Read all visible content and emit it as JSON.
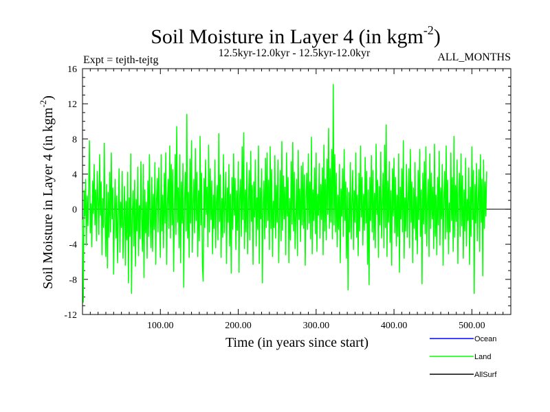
{
  "chart_data": {
    "type": "line",
    "title": "Soil Moisture in Layer 4 (in kgm",
    "title_sup": "-2",
    "title_end": ")",
    "subtitle_left": "Expt = tejth-tejtg",
    "subtitle_center": "12.5kyr-12.0kyr - 12.5kyr-12.0kyr",
    "subtitle_right": "ALL_MONTHS",
    "xlabel": "Time (in years since start)",
    "ylabel": "Soil Moisture in Layer 4 (in kgm",
    "ylabel_sup": "-2",
    "ylabel_end": ")",
    "xlim": [
      0,
      550
    ],
    "ylim": [
      -12,
      16
    ],
    "x_ticks": [
      100,
      200,
      300,
      400,
      500
    ],
    "x_tick_labels": [
      "100.00",
      "200.00",
      "300.00",
      "400.00",
      "500.00"
    ],
    "y_ticks": [
      -12,
      -8,
      -4,
      0,
      4,
      8,
      12,
      16
    ],
    "y_tick_labels": [
      "-12",
      "-8",
      "-4",
      "0",
      "4",
      "8",
      "12",
      "16"
    ],
    "zero_line": true,
    "legend": [
      {
        "name": "Ocean",
        "color": "#0000ff"
      },
      {
        "name": "Land",
        "color": "#00ff00"
      },
      {
        "name": "AllSurf",
        "color": "#000000"
      }
    ],
    "series": [
      {
        "name": "Land",
        "color": "#00ff00",
        "x_start": 0,
        "x_step": 1,
        "values": [
          -1.2,
          -10.6,
          2.1,
          -0.8,
          3.4,
          -4.1,
          1.5,
          -1.9,
          2.6,
          7.8,
          -2.7,
          0.6,
          -4.3,
          3.2,
          -0.5,
          5.1,
          -1.8,
          2.2,
          -3.6,
          4.3,
          0.9,
          -2.9,
          6.2,
          -0.7,
          3.1,
          -5.2,
          1.2,
          -2.1,
          7.5,
          -1.5,
          -5.4,
          2.8,
          -6.7,
          1.9,
          -3.2,
          4.2,
          -2.6,
          6.4,
          -1.1,
          2.4,
          -7.4,
          -0.6,
          3.4,
          -3.3,
          1.5,
          -6.1,
          -0.5,
          4.6,
          -4.9,
          0.8,
          -2.1,
          4.3,
          -5.6,
          -1.2,
          2.6,
          -6.4,
          0.9,
          -3.5,
          4.2,
          -8.4,
          1.3,
          -3.1,
          6.3,
          -9.6,
          -0.8,
          2.1,
          -4.2,
          3.3,
          -6.5,
          1.1,
          -2.5,
          4.8,
          -5.3,
          0.4,
          -3.4,
          5.4,
          -1.3,
          -4.8,
          5.1,
          -7.8,
          2.2,
          -2.7,
          0.8,
          -5.6,
          3.2,
          -3.1,
          6.2,
          -1.2,
          -4.4,
          3.6,
          -4.8,
          1.7,
          -2.3,
          5.3,
          -6.3,
          0.9,
          3.5,
          -2.6,
          4.7,
          -0.8,
          -5.5,
          6.2,
          -2.5,
          1.6,
          -4.4,
          4.1,
          -1.6,
          6.4,
          -6.3,
          0.5,
          3.4,
          -2.2,
          7.2,
          -3.3,
          5.1,
          -1.8,
          4.5,
          -7.1,
          -0.4,
          6.2,
          -2.9,
          9.4,
          -1.5,
          2.4,
          -4.4,
          6.2,
          -6.1,
          3.1,
          -1.6,
          5.2,
          -8.9,
          0.7,
          4.2,
          -2.5,
          10.8,
          -3.3,
          1.9,
          -5.5,
          5.7,
          -1.6,
          7.8,
          -4.9,
          0.6,
          3.4,
          -2.7,
          6.9,
          -1.3,
          4.2,
          -5.4,
          2.1,
          -3.6,
          8.3,
          -1.8,
          4.1,
          -6.5,
          -8.2,
          3.5,
          -2.1,
          5.6,
          -0.6,
          2.5,
          -4.3,
          7.3,
          -2.6,
          4.6,
          -1.2,
          3.2,
          -5.1,
          1.6,
          -2.2,
          5.6,
          -4.4,
          0.9,
          2.7,
          -3.5,
          8.6,
          -1.4,
          3.9,
          -5.5,
          1.2,
          -3.2,
          6.2,
          -2.7,
          0.6,
          4.2,
          -6.2,
          2.4,
          -1.5,
          5.1,
          -4.2,
          1.7,
          -7.3,
          3.6,
          -2.3,
          6.3,
          -0.7,
          3.5,
          -4.6,
          2.1,
          -2.4,
          5.4,
          -7.2,
          1.6,
          3.4,
          -3.1,
          7.1,
          -1.2,
          8.7,
          -4.5,
          2.2,
          -2.6,
          5.3,
          -5.1,
          0.8,
          4.4,
          -3.5,
          6.6,
          -1.4,
          2.7,
          -6.3,
          3.1,
          -0.9,
          5.6,
          -4.2,
          1.3,
          -2.3,
          7.2,
          -6.2,
          2.4,
          -1.1,
          4.6,
          -8.4,
          0.7,
          3.2,
          -3.4,
          5.8,
          -2.1,
          6.4,
          -1.3,
          3.3,
          -4.6,
          7.1,
          -2.2,
          4.5,
          -5.4,
          0.9,
          -2.1,
          6.1,
          -3.3,
          2.7,
          -1.5,
          5.6,
          -6.1,
          -0.5,
          4.4,
          -3.6,
          7.7,
          -2.4,
          3.8,
          -1.1,
          2.5,
          -5.2,
          6.4,
          -0.8,
          3.6,
          -6.1,
          1.2,
          -3.5,
          5.4,
          -1.7,
          7.6,
          -2.5,
          4.2,
          -4.5,
          -0.9,
          3.4,
          -5.3,
          6.7,
          -1.2,
          2.3,
          -3.7,
          4.9,
          -1.8,
          5.3,
          -2.2,
          3.9,
          -6.4,
          1.4,
          4.1,
          -2.3,
          6.3,
          -1.6,
          3.1,
          -3.4,
          8.2,
          -5.1,
          2.2,
          -1.3,
          4.7,
          -2.8,
          6.4,
          -4.8,
          1.7,
          -0.7,
          5.2,
          -3.3,
          2.8,
          -1.2,
          4.7,
          -5.2,
          7.3,
          -2.5,
          3.4,
          -3.5,
          5.7,
          -0.6,
          9.2,
          -2.2,
          4.6,
          -1.5,
          6.8,
          -3.4,
          14.2,
          -1.8,
          6.2,
          -2.6,
          4.1,
          -4.3,
          1.6,
          -2.3,
          5.1,
          -6.1,
          2.3,
          -0.8,
          4.6,
          -3.1,
          6.8,
          -1.3,
          3.1,
          -5.6,
          2.4,
          -9.2,
          1.9,
          -2.6,
          5.3,
          -3.4,
          0.7,
          4.4,
          -4.6,
          2.1,
          -1.5,
          6.4,
          -3.2,
          1.6,
          -5.3,
          4.1,
          -2.5,
          7.2,
          -0.9,
          3.6,
          -4.1,
          1.7,
          -2.4,
          5.9,
          -1.6,
          4.3,
          -6.3,
          2.2,
          -8.6,
          3.6,
          -1.3,
          6.1,
          -2.6,
          4.4,
          -3.5,
          1.8,
          -4.4,
          7.4,
          -0.6,
          3.3,
          -5.5,
          2.6,
          -1.8,
          6.5,
          -3.3,
          0.7,
          4.1,
          -4.4,
          7.3,
          -2.1,
          9.6,
          -5.4,
          3.2,
          -1.5,
          5.4,
          -3.8,
          2.1,
          -6.4,
          4.6,
          -0.8,
          5.8,
          -2.7,
          3.6,
          -4.2,
          1.6,
          -3.1,
          6.3,
          -7.2,
          2.5,
          -1.1,
          4.6,
          -2.6,
          7.8,
          -5.6,
          1.3,
          -2.5,
          5.1,
          -3.2,
          0.9,
          4.6,
          -4.4,
          6.8,
          -1.5,
          3.1,
          -6.1,
          2.4,
          -2.2,
          5.3,
          -3.5,
          1.4,
          -5.1,
          4.4,
          -1.2,
          6.8,
          -3.1,
          2.2,
          -8.5,
          4.1,
          -1.7,
          5.4,
          -2.8,
          7.1,
          -4.2,
          0.8,
          3.4,
          -5.4,
          6.3,
          -2.2,
          4.1,
          -1.1,
          2.5,
          -4.5,
          7.4,
          -3.1,
          1.6,
          -5.2,
          3.6,
          -1.8,
          6.6,
          -4.1,
          2.4,
          -1.1,
          5.1,
          -6.4,
          1.2,
          4.3,
          -3.4,
          7.2,
          -2.6,
          3.3,
          -5.1,
          0.7,
          -2.6,
          6.4,
          -1.3,
          3.6,
          -4.8,
          8.3,
          -3.2,
          2.7,
          -1.4,
          5.6,
          -6.2,
          1.6,
          4.1,
          -3.1,
          6.3,
          -1.9,
          3.8,
          -5.6,
          2.2,
          -2.5,
          5.8,
          -4.2,
          1.1,
          -1.3,
          4.7,
          -6.3,
          2.5,
          -3.1,
          7.1,
          -1.2,
          4.4,
          -9.6,
          2.8,
          -1.6,
          5.2,
          -3.6,
          0.8,
          4.5,
          -4.8,
          6.2,
          -1.5,
          3.4,
          -7.6,
          5.6,
          -2.2,
          3.1,
          -0.8,
          4.3
        ]
      }
    ]
  }
}
